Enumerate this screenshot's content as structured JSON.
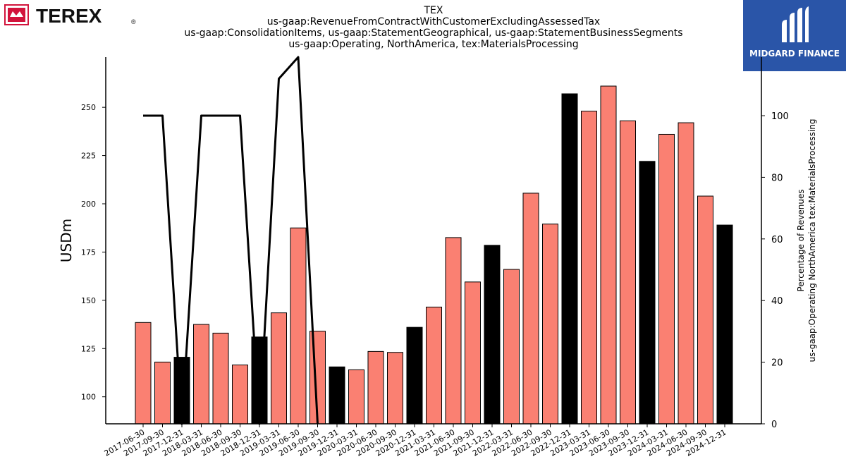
{
  "brand": {
    "left_logo_text": "TEREX",
    "left_logo_mark": "®",
    "right_logo_text": "MIDGARD FINANCE"
  },
  "colors": {
    "bar_salmon": "#fa8072",
    "bar_black": "#000000",
    "line": "#000000",
    "brand_blue": "#2a55a8",
    "terex_red": "#d2143c"
  },
  "chart_data": {
    "type": "bar",
    "title_lines": [
      "TEX",
      "us-gaap:RevenueFromContractWithCustomerExcludingAssessedTax",
      "us-gaap:ConsolidationItems, us-gaap:StatementGeographical, us-gaap:StatementBusinessSegments",
      "us-gaap:Operating, NorthAmerica, tex:MaterialsProcessing"
    ],
    "ylabel": "USDm",
    "y2label_lines": [
      "Percentage of Revenues",
      "us-gaap:Operating NorthAmerica tex:MaterialsProcessing"
    ],
    "ylim": [
      86,
      276
    ],
    "y2lim": [
      0,
      119
    ],
    "yticks": [
      100,
      125,
      150,
      175,
      200,
      225,
      250
    ],
    "y2ticks": [
      0,
      20,
      40,
      60,
      80,
      100
    ],
    "categories": [
      "2017-06-30",
      "2017-09-30",
      "2017-12-31",
      "2018-03-31",
      "2018-06-30",
      "2018-09-30",
      "2018-12-31",
      "2019-03-31",
      "2019-06-30",
      "2019-09-30",
      "2019-12-31",
      "2020-03-31",
      "2020-06-30",
      "2020-09-30",
      "2020-12-31",
      "2021-03-31",
      "2021-06-30",
      "2021-09-30",
      "2021-12-31",
      "2022-03-31",
      "2022-06-30",
      "2022-09-30",
      "2022-12-31",
      "2023-03-31",
      "2023-06-30",
      "2023-09-30",
      "2023-12-31",
      "2024-03-31",
      "2024-06-30",
      "2024-09-30",
      "2024-12-31"
    ],
    "values": [
      138.5,
      118,
      120.5,
      137.5,
      133,
      116.5,
      131,
      143.5,
      187.5,
      134,
      115.5,
      114,
      123.5,
      123,
      136,
      146.5,
      182.5,
      159.5,
      178.5,
      166,
      205.5,
      189.5,
      257,
      248,
      261,
      243,
      222,
      236,
      242,
      204,
      189
    ],
    "bar_colors": [
      "salmon",
      "salmon",
      "black",
      "salmon",
      "salmon",
      "salmon",
      "black",
      "salmon",
      "salmon",
      "salmon",
      "black",
      "salmon",
      "salmon",
      "salmon",
      "black",
      "salmon",
      "salmon",
      "salmon",
      "black",
      "salmon",
      "salmon",
      "salmon",
      "black",
      "salmon",
      "salmon",
      "salmon",
      "black",
      "salmon",
      "salmon",
      "salmon",
      "black"
    ],
    "line_series": {
      "axis": "right",
      "categories": [
        "2017-06-30",
        "2017-09-30",
        "2017-12-31",
        "2018-03-31",
        "2018-06-30",
        "2018-09-30",
        "2018-12-31",
        "2019-03-31",
        "2019-06-30",
        "2019-09-30"
      ],
      "values": [
        100,
        100,
        0,
        100,
        100,
        100,
        0,
        112,
        119,
        0
      ]
    },
    "grid": false
  }
}
